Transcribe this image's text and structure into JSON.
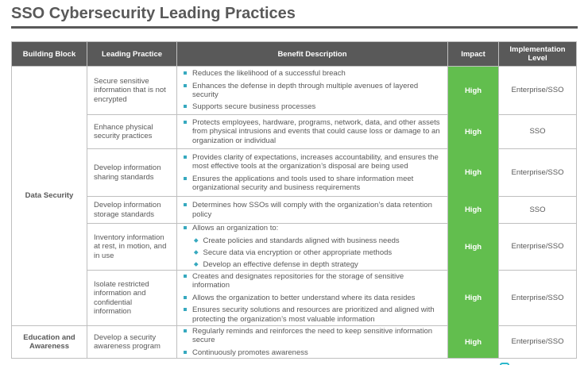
{
  "slide": {
    "title": "SSO Cybersecurity Leading Practices"
  },
  "table": {
    "columns": [
      "Building Block",
      "Leading Practice",
      "Benefit Description",
      "Impact",
      "Implementation Level"
    ],
    "building_blocks": [
      {
        "label": "Data Security"
      },
      {
        "label": "Education and Awareness"
      }
    ],
    "rows": [
      {
        "practice": "Secure sensitive information that is not encrypted",
        "benefits": [
          "Reduces the likelihood of a successful breach",
          "Enhances the defense in depth through multiple avenues of layered security",
          "Supports secure business processes"
        ],
        "impact": "High",
        "level": "Enterprise/SSO"
      },
      {
        "practice": "Enhance physical security practices",
        "benefits": [
          "Protects employees, hardware, programs, network, data, and other assets from physical intrusions and events that could cause loss or damage to an organization or individual"
        ],
        "impact": "High",
        "level": "SSO"
      },
      {
        "practice": "Develop information sharing standards",
        "benefits": [
          "Provides clarity of expectations, increases accountability, and ensures the most effective tools at the organization’s disposal are being used",
          "Ensures the applications and tools used to share information meet organizational security and business requirements"
        ],
        "impact": "High",
        "level": "Enterprise/SSO"
      },
      {
        "practice": "Develop information storage standards",
        "benefits": [
          "Determines how SSOs will comply with the organization’s data retention policy"
        ],
        "impact": "High",
        "level": "SSO"
      },
      {
        "practice": "Inventory information at rest, in motion, and in use",
        "benefits": [
          "Allows an organization to:"
        ],
        "sub_benefits": [
          "Create policies and standards aligned with business needs",
          "Secure data via encryption or other appropriate methods",
          "Develop an effective defense in depth strategy"
        ],
        "impact": "High",
        "level": "Enterprise/SSO"
      },
      {
        "practice": "Isolate restricted information and confidential information",
        "benefits": [
          "Creates and designates repositories for the storage of sensitive information",
          "Allows the organization to better understand where its data resides",
          "Ensures security solutions and resources are prioritized and aligned with protecting the organization’s most valuable information"
        ],
        "impact": "High",
        "level": "Enterprise/SSO"
      },
      {
        "practice": "Develop a security awareness program",
        "benefits": [
          "Regularly reminds and reinforces the need to keep sensitive information secure",
          "Continuously promotes awareness"
        ],
        "impact": "High",
        "level": "Enterprise/SSO"
      }
    ]
  },
  "colors": {
    "impact_green": "#62be4e",
    "bullet_teal": "#36a9bf",
    "header_gray": "#595959",
    "border_gray": "#bfbfbf",
    "text_gray": "#595959",
    "logo_teal": "#2bb7cc"
  }
}
